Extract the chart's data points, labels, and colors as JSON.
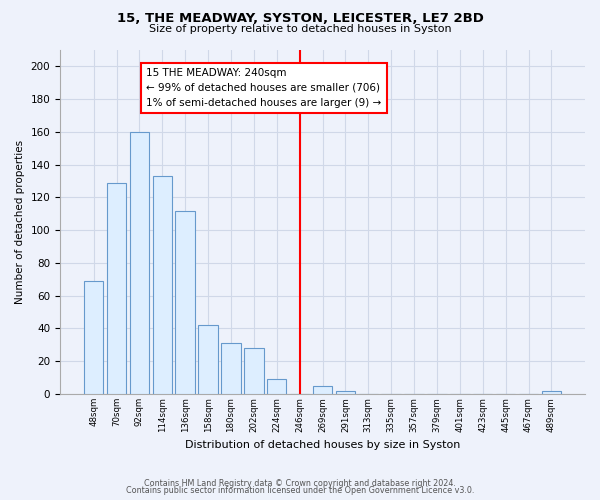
{
  "title": "15, THE MEADWAY, SYSTON, LEICESTER, LE7 2BD",
  "subtitle": "Size of property relative to detached houses in Syston",
  "xlabel": "Distribution of detached houses by size in Syston",
  "ylabel": "Number of detached properties",
  "bar_labels": [
    "48sqm",
    "70sqm",
    "92sqm",
    "114sqm",
    "136sqm",
    "158sqm",
    "180sqm",
    "202sqm",
    "224sqm",
    "246sqm",
    "269sqm",
    "291sqm",
    "313sqm",
    "335sqm",
    "357sqm",
    "379sqm",
    "401sqm",
    "423sqm",
    "445sqm",
    "467sqm",
    "489sqm"
  ],
  "bar_values": [
    69,
    129,
    160,
    133,
    112,
    42,
    31,
    28,
    9,
    0,
    5,
    2,
    0,
    0,
    0,
    0,
    0,
    0,
    0,
    0,
    2
  ],
  "bar_color": "#ddeeff",
  "bar_edge_color": "#6699cc",
  "vline_x_index": 9.0,
  "vline_color": "red",
  "annotation_text": "15 THE MEADWAY: 240sqm\n← 99% of detached houses are smaller (706)\n1% of semi-detached houses are larger (9) →",
  "annotation_box_color": "white",
  "annotation_box_edge": "red",
  "ylim": [
    0,
    210
  ],
  "yticks": [
    0,
    20,
    40,
    60,
    80,
    100,
    120,
    140,
    160,
    180,
    200
  ],
  "grid_color": "#d0d8e8",
  "footer1": "Contains HM Land Registry data © Crown copyright and database right 2024.",
  "footer2": "Contains public sector information licensed under the Open Government Licence v3.0.",
  "background_color": "#eef2fb"
}
